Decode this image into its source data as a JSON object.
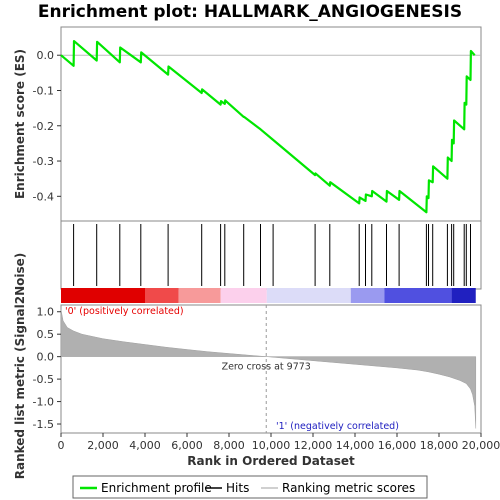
{
  "chart_data": {
    "type": "line",
    "title": "Enrichment plot: HALLMARK_ANGIOGENESIS",
    "top_panel": {
      "ylabel": "Enrichment score (ES)",
      "ylim": [
        -0.47,
        0.08
      ],
      "yticks": [
        "0.0",
        "-0.1",
        "-0.2",
        "-0.3",
        "-0.4"
      ],
      "ytick_values": [
        0.0,
        -0.1,
        -0.2,
        -0.3,
        -0.4
      ],
      "series": [
        {
          "name": "Enrichment profile",
          "color": "#00e600",
          "x": [
            0,
            600,
            620,
            1700,
            1720,
            2800,
            2820,
            3800,
            3820,
            5100,
            5120,
            6700,
            6720,
            7600,
            7620,
            7800,
            7820,
            8700,
            8720,
            9500,
            10100,
            12100,
            12120,
            12800,
            12820,
            14200,
            14220,
            14500,
            14520,
            14800,
            14820,
            15500,
            15520,
            16100,
            16120,
            17400,
            17420,
            17500,
            17520,
            17700,
            17720,
            18400,
            18420,
            18600,
            18620,
            18700,
            18720,
            19200,
            19220,
            19300,
            19320,
            19500,
            19520,
            19700
          ],
          "y": [
            0.0,
            -0.03,
            0.04,
            -0.015,
            0.038,
            -0.02,
            0.022,
            -0.02,
            0.008,
            -0.055,
            -0.032,
            -0.107,
            -0.097,
            -0.14,
            -0.13,
            -0.138,
            -0.128,
            -0.175,
            -0.175,
            -0.21,
            -0.24,
            -0.34,
            -0.335,
            -0.37,
            -0.36,
            -0.42,
            -0.403,
            -0.413,
            -0.395,
            -0.4,
            -0.385,
            -0.415,
            -0.385,
            -0.41,
            -0.385,
            -0.445,
            -0.4,
            -0.405,
            -0.355,
            -0.36,
            -0.315,
            -0.35,
            -0.29,
            -0.3,
            -0.24,
            -0.25,
            -0.185,
            -0.21,
            -0.135,
            -0.14,
            -0.06,
            -0.07,
            0.012,
            0.0
          ]
        }
      ]
    },
    "hits": {
      "name": "Hits",
      "x": [
        600,
        1700,
        2800,
        3800,
        5100,
        6700,
        7600,
        7800,
        8700,
        9500,
        10100,
        12100,
        12800,
        14200,
        14500,
        14800,
        15500,
        16100,
        17400,
        17500,
        17700,
        18400,
        18600,
        18700,
        19200,
        19300,
        19500
      ]
    },
    "bottom_panel": {
      "ylabel": "Ranked list metric (Signal2Noise)",
      "xlabel": "Rank in Ordered Dataset",
      "ylim": [
        -1.7,
        1.15
      ],
      "yticks": [
        "1.0",
        "0.5",
        "0.0",
        "-0.5",
        "-1.0",
        "-1.5"
      ],
      "ytick_values": [
        1.0,
        0.5,
        0.0,
        -0.5,
        -1.0,
        -1.5
      ],
      "xlim": [
        0,
        20000
      ],
      "xticks": [
        "0",
        "2,000",
        "4,000",
        "6,000",
        "8,000",
        "10,000",
        "12,000",
        "14,000",
        "16,000",
        "18,000",
        "20,000"
      ],
      "xtick_values": [
        0,
        2000,
        4000,
        6000,
        8000,
        10000,
        12000,
        14000,
        16000,
        18000,
        20000
      ],
      "series": [
        {
          "name": "Ranking metric scores",
          "color": "#b0b0b0",
          "x": [
            0,
            100,
            300,
            600,
            1000,
            2000,
            3000,
            4000,
            5000,
            6000,
            7000,
            8000,
            9000,
            9773,
            11000,
            12000,
            13000,
            14000,
            15000,
            16000,
            17000,
            17500,
            18000,
            18500,
            19000,
            19300,
            19500,
            19600,
            19700,
            19750
          ],
          "y": [
            1.05,
            0.8,
            0.65,
            0.57,
            0.5,
            0.4,
            0.33,
            0.27,
            0.21,
            0.16,
            0.11,
            0.07,
            0.03,
            0.0,
            -0.05,
            -0.09,
            -0.13,
            -0.17,
            -0.21,
            -0.25,
            -0.3,
            -0.34,
            -0.39,
            -0.45,
            -0.53,
            -0.6,
            -0.72,
            -0.85,
            -1.1,
            -1.6
          ]
        }
      ],
      "zero_cross_label": "Zero cross at 9773",
      "zero_cross_x": 9773,
      "positive_label": "'0' (positively correlated)",
      "negative_label": "'1' (negatively correlated)",
      "positive_color": "#e60000",
      "negative_color": "#2020c0"
    },
    "xlim": [
      0,
      20000
    ],
    "grid": false,
    "legend": {
      "placement": "bottom",
      "entries": [
        "Enrichment profile",
        "Hits",
        "Ranking metric scores"
      ]
    },
    "heatmap_bar": {
      "colors": [
        "#e00000",
        "#f04a4a",
        "#f79a9a",
        "#fcd0ec",
        "#dcdcf8",
        "#9a9af0",
        "#5050e0",
        "#2020c0"
      ],
      "stops": [
        0,
        4000,
        5600,
        7600,
        9800,
        13800,
        15400,
        18600,
        19750
      ]
    }
  }
}
